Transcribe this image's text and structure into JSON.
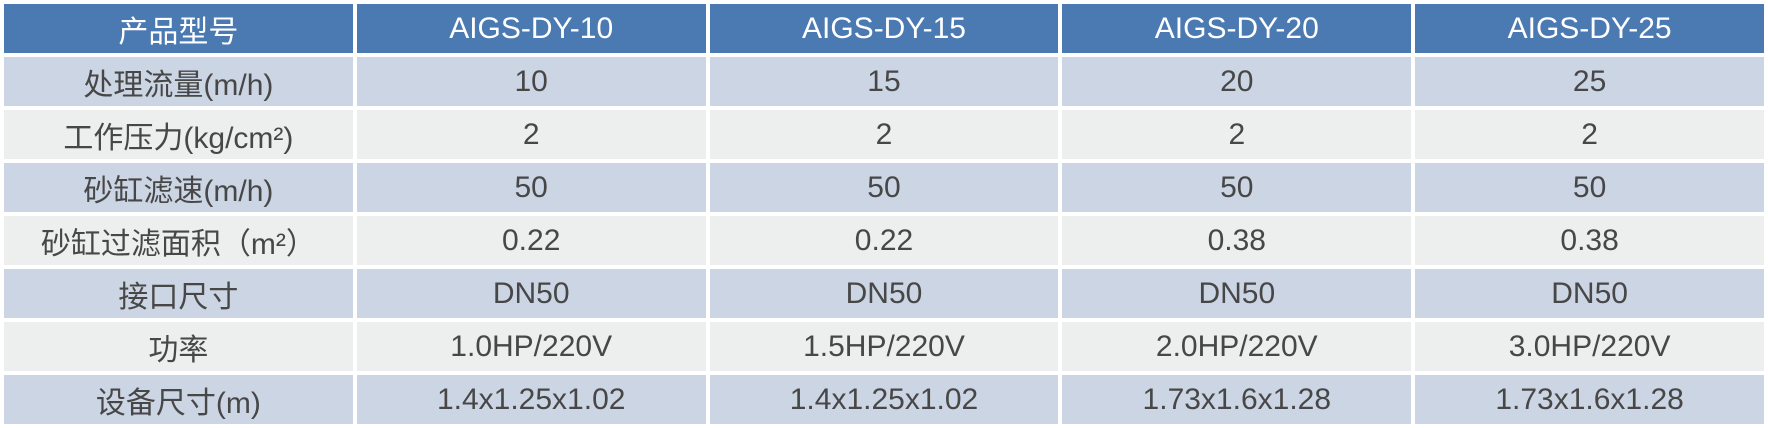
{
  "chart_data": {
    "type": "table",
    "columns": [
      "产品型号",
      "AIGS-DY-10",
      "AIGS-DY-15",
      "AIGS-DY-20",
      "AIGS-DY-25"
    ],
    "rows": [
      [
        "处理流量(m/h)",
        "10",
        "15",
        "20",
        "25"
      ],
      [
        "工作压力(kg/cm²)",
        "2",
        "2",
        "2",
        "2"
      ],
      [
        "砂缸滤速(m/h)",
        "50",
        "50",
        "50",
        "50"
      ],
      [
        "砂缸过滤面积（m²）",
        "0.22",
        "0.22",
        "0.38",
        "0.38"
      ],
      [
        "接口尺寸",
        "DN50",
        "DN50",
        "DN50",
        "DN50"
      ],
      [
        "功率",
        "1.0HP/220V",
        "1.5HP/220V",
        "2.0HP/220V",
        "3.0HP/220V"
      ],
      [
        "设备尺寸(m)",
        "1.4x1.25x1.02",
        "1.4x1.25x1.02",
        "1.73x1.6x1.28",
        "1.73x1.6x1.28"
      ]
    ]
  },
  "colors": {
    "header_bg": "#4b79b1",
    "header_text": "#ffffff",
    "row_blue": "#ccd5e4",
    "row_gray": "#edeeee",
    "body_text": "#474747"
  }
}
